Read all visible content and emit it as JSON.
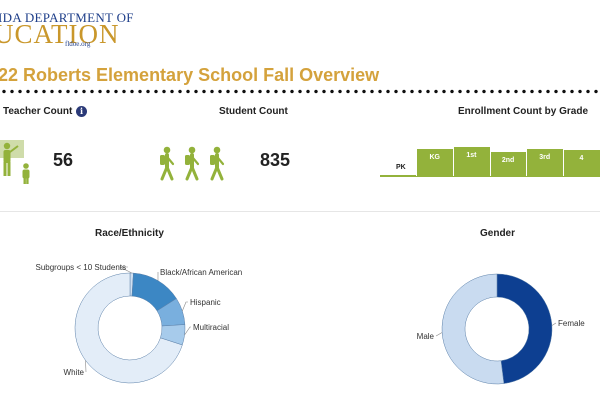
{
  "header": {
    "logo_line1": "IDA DEPARTMENT OF",
    "logo_line2": "UCATION",
    "logo_url": "fldoe.org",
    "page_title": "22 Roberts Elementary School Fall Overview"
  },
  "teacher": {
    "title": "Teacher Count",
    "info_icon": "i",
    "count": "56"
  },
  "student": {
    "title": "Student Count",
    "count": "835"
  },
  "enrollment": {
    "title": "Enrollment Count by Grade",
    "bar_color": "#93b23b"
  },
  "race": {
    "title": "Race/Ethnicity"
  },
  "gender": {
    "title": "Gender"
  },
  "chart_data": [
    {
      "type": "bar",
      "title": "Enrollment Count by Grade",
      "categories": [
        "PK",
        "KG",
        "1st",
        "2nd",
        "3rd",
        "4"
      ],
      "values": [
        2,
        27,
        29,
        24,
        27,
        26
      ],
      "ylim": [
        0,
        30
      ]
    },
    {
      "type": "pie",
      "title": "Race/Ethnicity",
      "labels": [
        "Subgroups < 10 Students",
        "Black/African American",
        "Hispanic",
        "Multiracial",
        "White"
      ],
      "values": [
        1,
        15,
        8,
        6,
        70
      ],
      "colors": [
        "#cfe0f2",
        "#3c87c4",
        "#79afde",
        "#a7cbeb",
        "#e3edf8"
      ]
    },
    {
      "type": "pie",
      "title": "Gender",
      "labels": [
        "Female",
        "Male"
      ],
      "values": [
        48,
        52
      ],
      "colors": [
        "#0d3f91",
        "#c9dbf0"
      ]
    }
  ]
}
